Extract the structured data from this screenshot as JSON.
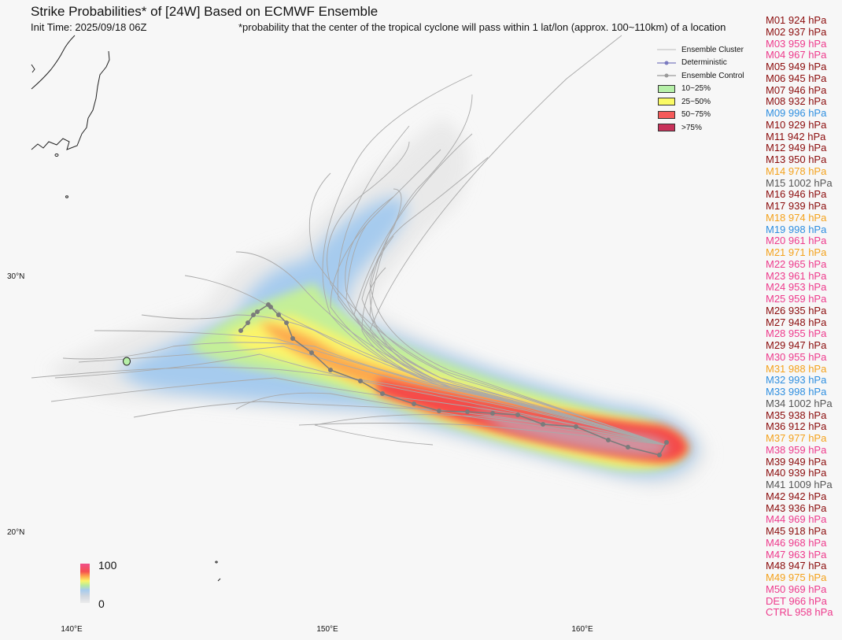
{
  "header": {
    "title": "Strike Probabilities* of [24W] Based on ECMWF Ensemble",
    "init_time": "Init Time: 2025/09/18 06Z",
    "footnote": "*probability that the center of the tropical cyclone will pass within 1 lat/lon (approx. 100~110km) of a location"
  },
  "axes": {
    "lat_labels": [
      "30°N",
      "20°N"
    ],
    "lon_labels": [
      "140°E",
      "150°E",
      "160°E"
    ]
  },
  "legend": {
    "ensemble_cluster": "Ensemble Cluster",
    "deterministic": "Deterministic",
    "ensemble_control": "Ensemble Control",
    "bins": [
      {
        "label": "10~25%",
        "color": "#b6f0a8"
      },
      {
        "label": "25~50%",
        "color": "#fafa64"
      },
      {
        "label": "50~75%",
        "color": "#f55a5a"
      },
      {
        "label": ">75%",
        "color": "#c8325a"
      }
    ]
  },
  "colorbar": {
    "max_label": "100",
    "min_label": "0"
  },
  "pressure_colors": {
    "dark_red": "#8b0b0b",
    "pink": "#ee3a8c",
    "orange": "#f4a21c",
    "blue": "#2f8fe0",
    "gray": "#555555"
  },
  "members": [
    {
      "label": "M01 924 hPa",
      "color": "#8b0b0b"
    },
    {
      "label": "M02 937 hPa",
      "color": "#8b0b0b"
    },
    {
      "label": "M03 959 hPa",
      "color": "#ee3a8c"
    },
    {
      "label": "M04 967 hPa",
      "color": "#ee3a8c"
    },
    {
      "label": "M05 949 hPa",
      "color": "#8b0b0b"
    },
    {
      "label": "M06 945 hPa",
      "color": "#8b0b0b"
    },
    {
      "label": "M07 946 hPa",
      "color": "#8b0b0b"
    },
    {
      "label": "M08 932 hPa",
      "color": "#8b0b0b"
    },
    {
      "label": "M09 996 hPa",
      "color": "#2f8fe0"
    },
    {
      "label": "M10 929 hPa",
      "color": "#8b0b0b"
    },
    {
      "label": "M11 942 hPa",
      "color": "#8b0b0b"
    },
    {
      "label": "M12 949 hPa",
      "color": "#8b0b0b"
    },
    {
      "label": "M13 950 hPa",
      "color": "#8b0b0b"
    },
    {
      "label": "M14 978 hPa",
      "color": "#f4a21c"
    },
    {
      "label": "M15 1002 hPa",
      "color": "#555555"
    },
    {
      "label": "M16 946 hPa",
      "color": "#8b0b0b"
    },
    {
      "label": "M17 939 hPa",
      "color": "#8b0b0b"
    },
    {
      "label": "M18 974 hPa",
      "color": "#f4a21c"
    },
    {
      "label": "M19 998 hPa",
      "color": "#2f8fe0"
    },
    {
      "label": "M20 961 hPa",
      "color": "#ee3a8c"
    },
    {
      "label": "M21 971 hPa",
      "color": "#f4a21c"
    },
    {
      "label": "M22 965 hPa",
      "color": "#ee3a8c"
    },
    {
      "label": "M23 961 hPa",
      "color": "#ee3a8c"
    },
    {
      "label": "M24 953 hPa",
      "color": "#ee3a8c"
    },
    {
      "label": "M25 959 hPa",
      "color": "#ee3a8c"
    },
    {
      "label": "M26 935 hPa",
      "color": "#8b0b0b"
    },
    {
      "label": "M27 948 hPa",
      "color": "#8b0b0b"
    },
    {
      "label": "M28 955 hPa",
      "color": "#ee3a8c"
    },
    {
      "label": "M29 947 hPa",
      "color": "#8b0b0b"
    },
    {
      "label": "M30 955 hPa",
      "color": "#ee3a8c"
    },
    {
      "label": "M31 988 hPa",
      "color": "#f4a21c"
    },
    {
      "label": "M32 993 hPa",
      "color": "#2f8fe0"
    },
    {
      "label": "M33 998 hPa",
      "color": "#2f8fe0"
    },
    {
      "label": "M34 1002 hPa",
      "color": "#555555"
    },
    {
      "label": "M35 938 hPa",
      "color": "#8b0b0b"
    },
    {
      "label": "M36 912 hPa",
      "color": "#8b0b0b"
    },
    {
      "label": "M37 977 hPa",
      "color": "#f4a21c"
    },
    {
      "label": "M38 959 hPa",
      "color": "#ee3a8c"
    },
    {
      "label": "M39 949 hPa",
      "color": "#8b0b0b"
    },
    {
      "label": "M40 939 hPa",
      "color": "#8b0b0b"
    },
    {
      "label": "M41 1009 hPa",
      "color": "#555555"
    },
    {
      "label": "M42 942 hPa",
      "color": "#8b0b0b"
    },
    {
      "label": "M43 936 hPa",
      "color": "#8b0b0b"
    },
    {
      "label": "M44 969 hPa",
      "color": "#ee3a8c"
    },
    {
      "label": "M45 918 hPa",
      "color": "#8b0b0b"
    },
    {
      "label": "M46 968 hPa",
      "color": "#ee3a8c"
    },
    {
      "label": "M47 963 hPa",
      "color": "#ee3a8c"
    },
    {
      "label": "M48 947 hPa",
      "color": "#8b0b0b"
    },
    {
      "label": "M49 975 hPa",
      "color": "#f4a21c"
    },
    {
      "label": "M50 969 hPa",
      "color": "#ee3a8c"
    },
    {
      "label": "DET 966 hPa",
      "color": "#ee3a8c"
    },
    {
      "label": "CTRL 958 hPa",
      "color": "#ee3a8c"
    }
  ]
}
